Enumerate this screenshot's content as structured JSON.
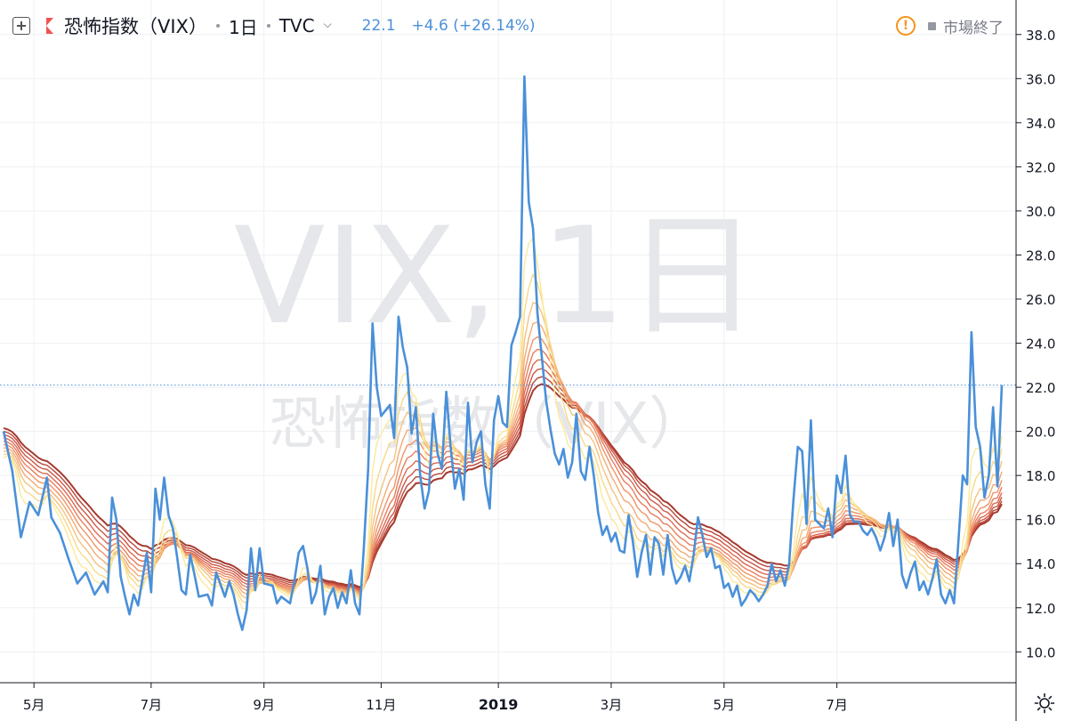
{
  "header": {
    "symbol_label": "恐怖指数（VIX）",
    "interval": "1日",
    "exchange": "TVC",
    "price": "22.1",
    "change": "+4.6 (+26.14%)",
    "market_status": "市場終了",
    "icons": [
      "plus-box-icon",
      "flag-icon",
      "chevron-down-icon",
      "warning-icon",
      "gear-icon"
    ]
  },
  "watermark": {
    "line1": "VIX, 1日",
    "line2": "恐怖指数（VIX）"
  },
  "colors": {
    "price_line": "#4a90d9",
    "ribbon": [
      "#fbe99a",
      "#f8d98a",
      "#f5c27f",
      "#f2ab73",
      "#ef9468",
      "#e87e5e",
      "#dc6a52",
      "#cc5846",
      "#b8473a",
      "#a63a2e"
    ],
    "grid": "#eef0f3",
    "axis_text": "#131722",
    "last_price_badge": "#4a90d9"
  },
  "chart_data": {
    "type": "line",
    "x_ticks": [
      "5月",
      "7月",
      "9月",
      "11月",
      "2019",
      "3月",
      "5月",
      "7月"
    ],
    "y_ticks": [
      "10.0",
      "12.0",
      "14.0",
      "16.0",
      "18.0",
      "20.0",
      "22.0",
      "24.0",
      "26.0",
      "28.0",
      "30.0",
      "32.0",
      "34.0",
      "36.0",
      "38.0"
    ],
    "ylim": [
      8.6,
      39.0
    ],
    "last_price": 22.1,
    "last_price_label": "22.1",
    "series": [
      {
        "points": [
          [
            0,
            20.0
          ],
          [
            2,
            18.2
          ],
          [
            4,
            15.2
          ],
          [
            6,
            16.8
          ],
          [
            8,
            16.2
          ],
          [
            10,
            17.9
          ],
          [
            11,
            16.1
          ],
          [
            13,
            15.4
          ],
          [
            15,
            14.2
          ],
          [
            17,
            13.1
          ],
          [
            19,
            13.6
          ],
          [
            21,
            12.6
          ],
          [
            23,
            13.2
          ],
          [
            24,
            12.7
          ],
          [
            25,
            17.0
          ],
          [
            26,
            16.0
          ],
          [
            27,
            13.4
          ],
          [
            28,
            12.5
          ],
          [
            29,
            11.7
          ],
          [
            30,
            12.6
          ],
          [
            31,
            12.1
          ],
          [
            33,
            14.5
          ],
          [
            34,
            12.7
          ],
          [
            35,
            17.4
          ],
          [
            36,
            16.0
          ],
          [
            37,
            17.9
          ],
          [
            38,
            16.2
          ],
          [
            39,
            15.6
          ],
          [
            40,
            14.3
          ],
          [
            41,
            12.8
          ],
          [
            42,
            12.6
          ],
          [
            43,
            14.4
          ],
          [
            44,
            13.5
          ],
          [
            45,
            12.5
          ],
          [
            47,
            12.6
          ],
          [
            48,
            12.1
          ],
          [
            49,
            13.6
          ],
          [
            51,
            12.5
          ],
          [
            52,
            13.2
          ],
          [
            53,
            12.6
          ],
          [
            54,
            11.7
          ],
          [
            55,
            11.0
          ],
          [
            56,
            11.9
          ],
          [
            57,
            14.7
          ],
          [
            58,
            12.8
          ],
          [
            59,
            14.7
          ],
          [
            60,
            13.1
          ],
          [
            62,
            13.0
          ],
          [
            63,
            12.2
          ],
          [
            64,
            12.5
          ],
          [
            66,
            12.2
          ],
          [
            67,
            13.2
          ],
          [
            68,
            14.5
          ],
          [
            69,
            14.8
          ],
          [
            70,
            13.8
          ],
          [
            71,
            12.2
          ],
          [
            72,
            12.7
          ],
          [
            73,
            13.9
          ],
          [
            74,
            11.7
          ],
          [
            75,
            12.5
          ],
          [
            76,
            12.9
          ],
          [
            77,
            12.0
          ],
          [
            78,
            12.7
          ],
          [
            79,
            12.2
          ],
          [
            80,
            13.7
          ],
          [
            81,
            12.2
          ],
          [
            82,
            11.7
          ],
          [
            83,
            14.7
          ],
          [
            84,
            18.3
          ],
          [
            85,
            24.9
          ],
          [
            86,
            22.0
          ],
          [
            87,
            20.7
          ],
          [
            89,
            21.2
          ],
          [
            90,
            19.7
          ],
          [
            91,
            25.2
          ],
          [
            92,
            23.8
          ],
          [
            93,
            22.9
          ],
          [
            94,
            19.9
          ],
          [
            95,
            21.1
          ],
          [
            96,
            18.0
          ],
          [
            97,
            16.5
          ],
          [
            98,
            17.3
          ],
          [
            99,
            20.8
          ],
          [
            100,
            19.0
          ],
          [
            101,
            18.3
          ],
          [
            102,
            21.8
          ],
          [
            103,
            19.3
          ],
          [
            104,
            17.4
          ],
          [
            105,
            18.3
          ],
          [
            106,
            16.9
          ],
          [
            107,
            21.3
          ],
          [
            108,
            18.6
          ],
          [
            109,
            19.5
          ],
          [
            110,
            20.0
          ],
          [
            111,
            17.6
          ],
          [
            112,
            16.5
          ],
          [
            113,
            20.5
          ],
          [
            114,
            21.6
          ],
          [
            115,
            20.4
          ],
          [
            116,
            20.2
          ],
          [
            117,
            23.9
          ],
          [
            118,
            24.5
          ],
          [
            119,
            25.2
          ],
          [
            120,
            36.1
          ],
          [
            121,
            30.4
          ],
          [
            122,
            29.2
          ],
          [
            123,
            25.4
          ],
          [
            124,
            23.4
          ],
          [
            125,
            21.4
          ],
          [
            126,
            20.1
          ],
          [
            127,
            19.0
          ],
          [
            128,
            18.5
          ],
          [
            129,
            19.2
          ],
          [
            130,
            17.9
          ],
          [
            131,
            18.6
          ],
          [
            132,
            20.8
          ],
          [
            133,
            18.2
          ],
          [
            134,
            17.8
          ],
          [
            135,
            19.3
          ],
          [
            136,
            18.0
          ],
          [
            137,
            16.3
          ],
          [
            138,
            15.3
          ],
          [
            139,
            15.7
          ],
          [
            140,
            15.0
          ],
          [
            141,
            15.4
          ],
          [
            142,
            14.6
          ],
          [
            143,
            14.5
          ],
          [
            144,
            16.2
          ],
          [
            145,
            15.0
          ],
          [
            146,
            13.4
          ],
          [
            147,
            14.5
          ],
          [
            148,
            15.3
          ],
          [
            149,
            13.5
          ],
          [
            150,
            15.2
          ],
          [
            151,
            14.9
          ],
          [
            152,
            13.5
          ],
          [
            153,
            15.3
          ],
          [
            154,
            13.8
          ],
          [
            155,
            13.1
          ],
          [
            156,
            13.4
          ],
          [
            157,
            13.9
          ],
          [
            158,
            13.2
          ],
          [
            159,
            14.4
          ],
          [
            160,
            16.1
          ],
          [
            161,
            15.3
          ],
          [
            162,
            14.3
          ],
          [
            163,
            14.7
          ],
          [
            164,
            13.8
          ],
          [
            165,
            13.9
          ],
          [
            166,
            12.9
          ],
          [
            167,
            13.1
          ],
          [
            168,
            12.5
          ],
          [
            169,
            13.0
          ],
          [
            170,
            12.1
          ],
          [
            171,
            12.4
          ],
          [
            172,
            12.8
          ],
          [
            173,
            12.6
          ],
          [
            174,
            12.3
          ],
          [
            175,
            12.6
          ],
          [
            176,
            13.0
          ],
          [
            177,
            14.0
          ],
          [
            178,
            13.2
          ],
          [
            179,
            13.7
          ],
          [
            180,
            13.0
          ],
          [
            181,
            14.0
          ],
          [
            182,
            16.9
          ],
          [
            183,
            19.3
          ],
          [
            184,
            19.1
          ],
          [
            185,
            15.8
          ],
          [
            186,
            20.5
          ],
          [
            187,
            16.0
          ],
          [
            188,
            15.8
          ],
          [
            189,
            15.6
          ],
          [
            190,
            16.5
          ],
          [
            191,
            15.2
          ],
          [
            192,
            18.0
          ],
          [
            193,
            17.2
          ],
          [
            194,
            18.9
          ],
          [
            195,
            16.2
          ],
          [
            196,
            15.9
          ],
          [
            197,
            15.9
          ],
          [
            198,
            15.5
          ],
          [
            199,
            15.3
          ],
          [
            200,
            15.6
          ],
          [
            201,
            15.2
          ],
          [
            202,
            14.6
          ],
          [
            203,
            15.2
          ],
          [
            204,
            16.3
          ],
          [
            205,
            14.8
          ],
          [
            206,
            16.0
          ],
          [
            207,
            13.5
          ],
          [
            208,
            12.9
          ],
          [
            209,
            13.6
          ],
          [
            210,
            14.1
          ],
          [
            211,
            12.8
          ],
          [
            212,
            13.2
          ],
          [
            213,
            12.6
          ],
          [
            214,
            13.3
          ],
          [
            215,
            14.2
          ],
          [
            216,
            12.6
          ],
          [
            217,
            12.2
          ],
          [
            218,
            12.8
          ],
          [
            219,
            12.2
          ],
          [
            220,
            15.0
          ],
          [
            221,
            18.0
          ],
          [
            222,
            17.6
          ],
          [
            223,
            24.5
          ],
          [
            224,
            20.2
          ],
          [
            225,
            19.3
          ],
          [
            226,
            17.0
          ],
          [
            227,
            18.0
          ],
          [
            228,
            21.1
          ],
          [
            229,
            17.5
          ],
          [
            230,
            22.1
          ]
        ]
      }
    ],
    "ribbon_lengths": [
      5,
      8,
      11,
      14,
      17,
      20,
      23,
      26,
      29,
      32
    ]
  }
}
